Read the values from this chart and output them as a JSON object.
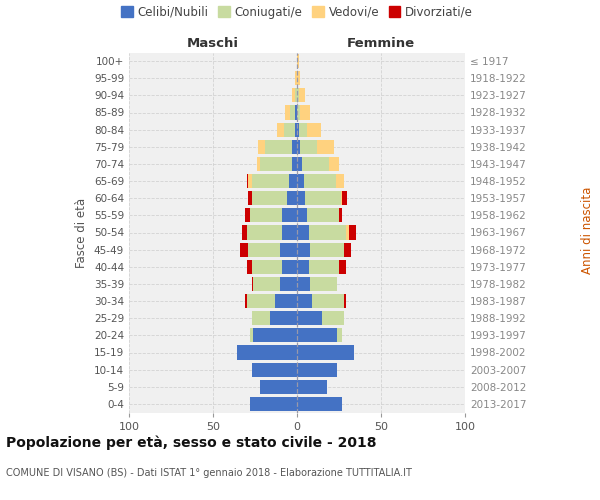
{
  "age_groups": [
    "0-4",
    "5-9",
    "10-14",
    "15-19",
    "20-24",
    "25-29",
    "30-34",
    "35-39",
    "40-44",
    "45-49",
    "50-54",
    "55-59",
    "60-64",
    "65-69",
    "70-74",
    "75-79",
    "80-84",
    "85-89",
    "90-94",
    "95-99",
    "100+"
  ],
  "birth_years": [
    "2013-2017",
    "2008-2012",
    "2003-2007",
    "1998-2002",
    "1993-1997",
    "1988-1992",
    "1983-1987",
    "1978-1982",
    "1973-1977",
    "1968-1972",
    "1963-1967",
    "1958-1962",
    "1953-1957",
    "1948-1952",
    "1943-1947",
    "1938-1942",
    "1933-1937",
    "1928-1932",
    "1923-1927",
    "1918-1922",
    "≤ 1917"
  ],
  "male": {
    "celibi": [
      28,
      22,
      27,
      36,
      26,
      16,
      13,
      10,
      9,
      10,
      9,
      9,
      6,
      5,
      3,
      3,
      1,
      1,
      0,
      0,
      0
    ],
    "coniugati": [
      0,
      0,
      0,
      0,
      2,
      11,
      17,
      16,
      18,
      19,
      21,
      19,
      21,
      22,
      19,
      16,
      7,
      3,
      1,
      0,
      0
    ],
    "vedovi": [
      0,
      0,
      0,
      0,
      0,
      0,
      0,
      0,
      0,
      0,
      0,
      0,
      0,
      2,
      2,
      4,
      4,
      3,
      2,
      1,
      0
    ],
    "divorziati": [
      0,
      0,
      0,
      0,
      0,
      0,
      1,
      1,
      3,
      5,
      3,
      3,
      2,
      1,
      0,
      0,
      0,
      0,
      0,
      0,
      0
    ]
  },
  "female": {
    "nubili": [
      27,
      18,
      24,
      34,
      24,
      15,
      9,
      8,
      7,
      8,
      7,
      6,
      5,
      4,
      3,
      2,
      1,
      0,
      0,
      0,
      0
    ],
    "coniugate": [
      0,
      0,
      0,
      0,
      3,
      13,
      19,
      16,
      18,
      20,
      22,
      19,
      21,
      19,
      16,
      10,
      5,
      2,
      1,
      0,
      0
    ],
    "vedove": [
      0,
      0,
      0,
      0,
      0,
      0,
      0,
      0,
      0,
      0,
      2,
      0,
      1,
      5,
      6,
      10,
      8,
      6,
      4,
      2,
      1
    ],
    "divorziate": [
      0,
      0,
      0,
      0,
      0,
      0,
      1,
      0,
      4,
      4,
      4,
      2,
      3,
      0,
      0,
      0,
      0,
      0,
      0,
      0,
      0
    ]
  },
  "colors": {
    "celibi": "#4472C4",
    "coniugati": "#C8DBA0",
    "vedovi": "#FFD27F",
    "divorziati": "#CC0000"
  },
  "xlim": 100,
  "bg_color": "#F0F0F0",
  "grid_color": "#CCCCCC",
  "title": "Popolazione per età, sesso e stato civile - 2018",
  "subtitle": "COMUNE DI VISANO (BS) - Dati ISTAT 1° gennaio 2018 - Elaborazione TUTTITALIA.IT",
  "ylabel_left": "Fasce di età",
  "ylabel_right": "Anni di nascita",
  "maschi_label": "Maschi",
  "femmine_label": "Femmine"
}
